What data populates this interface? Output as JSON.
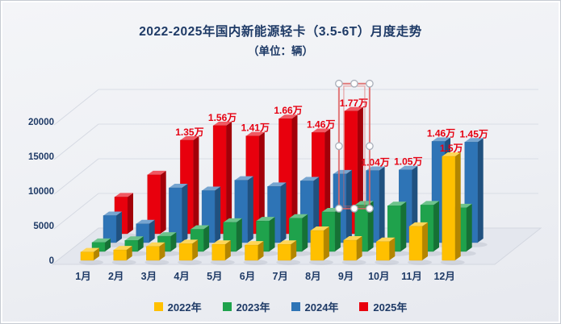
{
  "chart": {
    "title": "2022-2025年国内新能源轻卡（3.5-6T）月度走势",
    "subtitle": "（单位：辆）",
    "title_color": "#1e3a66",
    "axis_text_color": "#1e3a66",
    "data_label_color": "#e60011"
  },
  "chart_data": {
    "type": "bar",
    "variant": "3d-clustered-depth-rows",
    "unit": "辆",
    "title": "2022-2025年国内新能源轻卡（3.5-6T）月度走势",
    "categories": [
      "1月",
      "2月",
      "3月",
      "4月",
      "5月",
      "6月",
      "7月",
      "8月",
      "9月",
      "10月",
      "11月",
      "12月"
    ],
    "yticks": [
      0,
      5000,
      10000,
      15000,
      20000
    ],
    "ylim": [
      0,
      20000
    ],
    "grid": true,
    "legend_position": "bottom",
    "series": [
      {
        "name": "2022年",
        "color": "#FFC000",
        "values": [
          1200,
          1500,
          2000,
          2400,
          2300,
          2200,
          2300,
          4300,
          2900,
          2700,
          4900,
          15000
        ],
        "data_labels": [
          null,
          null,
          null,
          null,
          null,
          null,
          null,
          null,
          null,
          null,
          null,
          "1.5万"
        ]
      },
      {
        "name": "2023年",
        "color": "#1FA24C",
        "values": [
          1300,
          1600,
          2200,
          3200,
          4200,
          4400,
          4800,
          5700,
          6700,
          6600,
          6700,
          6300
        ],
        "data_labels": [
          null,
          null,
          null,
          null,
          null,
          null,
          null,
          null,
          null,
          null,
          null,
          null
        ]
      },
      {
        "name": "2024年",
        "color": "#2E74B6",
        "values": [
          3900,
          2700,
          7900,
          7500,
          9000,
          8100,
          8900,
          9900,
          10400,
          10500,
          14600,
          14500
        ],
        "data_labels": [
          null,
          null,
          null,
          null,
          null,
          null,
          null,
          null,
          "1.04万",
          "1.05万",
          "1.46万",
          "1.45万"
        ]
      },
      {
        "name": "2025年",
        "color": "#E8000D",
        "values": [
          5300,
          8500,
          13500,
          15600,
          14100,
          16600,
          14600,
          17700,
          null,
          null,
          null,
          null
        ],
        "data_labels": [
          null,
          null,
          "1.35万",
          "1.56万",
          "1.41万",
          "1.66万",
          "1.46万",
          "1.77万",
          null,
          null,
          null,
          null
        ]
      }
    ],
    "selected_point": {
      "series": "2025年",
      "category": "8月",
      "value_label": "1.77万"
    }
  }
}
